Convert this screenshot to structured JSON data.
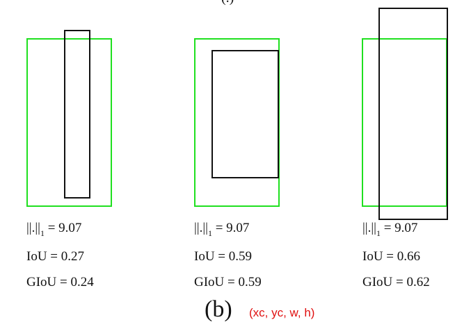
{
  "caption": "(b)",
  "note": "(xc, yc, w, h)",
  "top_fragment": "(.)",
  "colors": {
    "ground_truth_box": "#1fe01f",
    "prediction_box": "#111111",
    "note_text": "#e01010"
  },
  "panels": [
    {
      "norm_label": "||.||",
      "norm_sub": "1",
      "norm_value": " = 9.07",
      "iou": "IoU = 0.27",
      "giou": "GIoU = 0.24"
    },
    {
      "norm_label": "||.||",
      "norm_sub": "1",
      "norm_value": " = 9.07",
      "iou": "IoU = 0.59",
      "giou": "GIoU = 0.59"
    },
    {
      "norm_label": "||.||",
      "norm_sub": "1",
      "norm_value": " = 9.07",
      "iou": "IoU = 0.66",
      "giou": "GIoU = 0.62"
    }
  ]
}
